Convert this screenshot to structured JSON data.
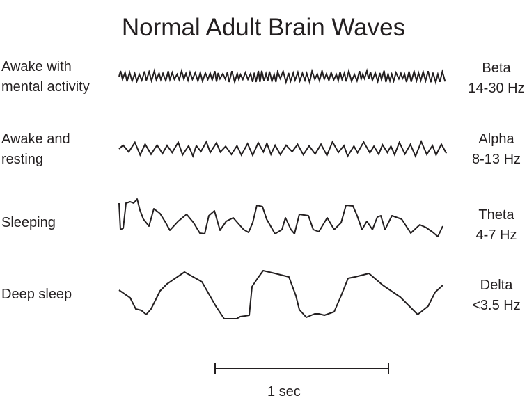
{
  "title": "Normal Adult Brain Waves",
  "rows": [
    {
      "state": [
        "Awake with",
        "mental activity"
      ],
      "wave": "Beta",
      "freq": "14-30 Hz"
    },
    {
      "state": [
        "Awake and",
        "resting"
      ],
      "wave": "Alpha",
      "freq": "8-13 Hz"
    },
    {
      "state": [
        "Sleeping"
      ],
      "wave": "Theta",
      "freq": "4-7 Hz"
    },
    {
      "state": [
        "Deep sleep"
      ],
      "wave": "Delta",
      "freq": "<3.5 Hz"
    }
  ],
  "scale_label": "1 sec",
  "line_color": "#231f20"
}
